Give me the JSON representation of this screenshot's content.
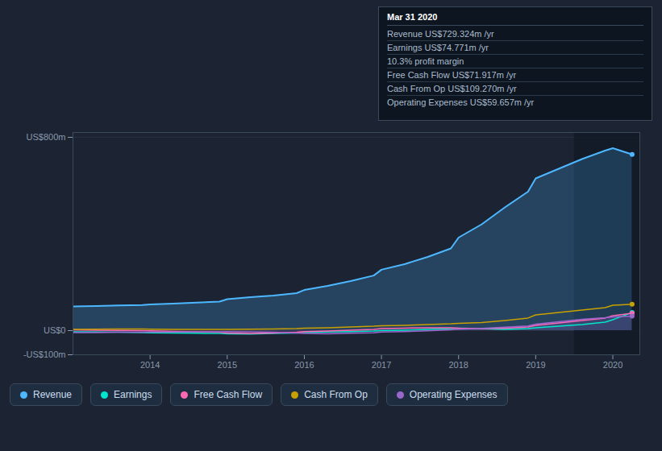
{
  "chart_data": {
    "type": "line",
    "x": [
      2013.0,
      2013.3,
      2013.6,
      2013.9,
      2014.0,
      2014.3,
      2014.6,
      2014.9,
      2015.0,
      2015.3,
      2015.6,
      2015.9,
      2016.0,
      2016.3,
      2016.6,
      2016.9,
      2017.0,
      2017.3,
      2017.6,
      2017.9,
      2018.0,
      2018.3,
      2018.6,
      2018.9,
      2019.0,
      2019.3,
      2019.6,
      2019.9,
      2020.0,
      2020.25
    ],
    "series": [
      {
        "name": "Revenue",
        "color": "#4db8ff",
        "type": "area",
        "values": [
          100,
          102,
          104,
          106,
          108,
          112,
          116,
          120,
          130,
          138,
          145,
          155,
          168,
          185,
          205,
          228,
          252,
          275,
          305,
          340,
          385,
          440,
          510,
          575,
          630,
          670,
          710,
          745,
          755,
          729
        ]
      },
      {
        "name": "Earnings",
        "color": "#00e5cc",
        "type": "line",
        "values": [
          -5,
          -6,
          -7,
          -8,
          -9,
          -10,
          -11,
          -12,
          -13,
          -14,
          -12,
          -10,
          -8,
          -6,
          -4,
          -2,
          0,
          2,
          5,
          8,
          10,
          8,
          5,
          8,
          12,
          18,
          25,
          35,
          45,
          75
        ]
      },
      {
        "name": "Free Cash Flow",
        "color": "#ff69b4",
        "type": "line",
        "values": [
          3,
          2,
          1,
          0,
          -1,
          -3,
          -5,
          -7,
          -10,
          -12,
          -10,
          -7,
          -4,
          -2,
          2,
          5,
          8,
          10,
          12,
          12,
          10,
          8,
          10,
          15,
          22,
          32,
          42,
          52,
          62,
          72
        ]
      },
      {
        "name": "Cash From Op",
        "color": "#c8a000",
        "type": "line",
        "values": [
          5,
          6,
          7,
          7,
          6,
          5,
          5,
          5,
          5,
          6,
          7,
          8,
          10,
          12,
          15,
          18,
          20,
          22,
          25,
          28,
          30,
          33,
          42,
          52,
          65,
          75,
          85,
          95,
          105,
          109
        ]
      },
      {
        "name": "Operating Expenses",
        "color": "#9966cc",
        "type": "area",
        "values": [
          -8,
          -8,
          -7,
          -7,
          -6,
          -6,
          -5,
          -5,
          -4,
          -5,
          -7,
          -10,
          -12,
          -13,
          -11,
          -9,
          -6,
          -4,
          -1,
          3,
          6,
          9,
          14,
          19,
          27,
          37,
          47,
          53,
          57,
          60
        ]
      }
    ],
    "xlim": [
      2013.0,
      2020.35
    ],
    "xticks": [
      2014,
      2015,
      2016,
      2017,
      2018,
      2019,
      2020
    ],
    "ylim": [
      -100,
      820
    ],
    "yticks": [
      {
        "value": -100,
        "label": "-US$100m"
      },
      {
        "value": 0,
        "label": "US$0"
      },
      {
        "value": 800,
        "label": "US$800m"
      }
    ],
    "highlight_start": 2019.5,
    "grid": true,
    "legend": "bottom",
    "annotations": [
      "Mar 31 2020",
      "Revenue US$729.324m /yr",
      "Earnings US$74.771m /yr",
      "10.3% profit margin",
      "Free Cash Flow US$71.917m /yr",
      "Cash From Op US$109.270m /yr",
      "Operating Expenses US$59.657m /yr"
    ]
  }
}
